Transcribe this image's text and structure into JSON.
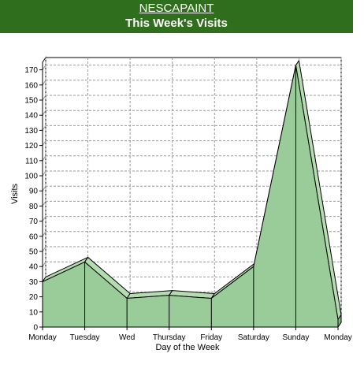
{
  "header": {
    "site_name": "NESCAPAINT",
    "title": "This Week's Visits"
  },
  "colors": {
    "header_bg": "#2f6e1c",
    "area_fill": "#99cc99",
    "area_top": "#b5dcb0",
    "area_side": "#7fba7f",
    "edge": "#000000",
    "grid": "#999999"
  },
  "chart_data": {
    "type": "area",
    "title": "This Week's Visits",
    "xlabel": "Day of the Week",
    "ylabel": "Visits",
    "categories": [
      "Monday",
      "Tuesday",
      "Wed",
      "Thursday",
      "Friday",
      "Saturday",
      "Sunday",
      "Monday"
    ],
    "values": [
      30,
      43,
      19,
      21,
      19,
      40,
      173,
      5
    ],
    "ylim": [
      0,
      175
    ],
    "yticks": [
      0,
      10,
      20,
      30,
      40,
      50,
      60,
      70,
      80,
      90,
      100,
      110,
      120,
      130,
      140,
      150,
      160,
      170
    ],
    "grid": true,
    "legend": "none"
  }
}
